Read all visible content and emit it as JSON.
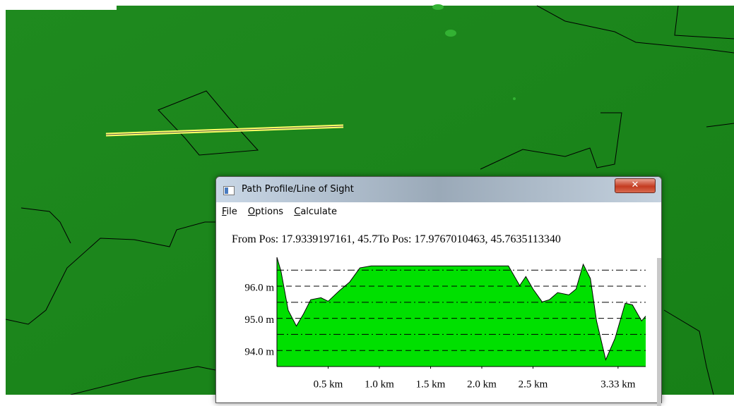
{
  "window": {
    "title": "Path Profile/Line of Sight",
    "menu": [
      "File",
      "Options",
      "Calculate"
    ],
    "position_text": "From Pos: 17.9339197161, 45.7To Pos: 17.9767010463, 45.7635113340"
  },
  "chart_data": {
    "type": "area",
    "x": [
      0,
      0.04,
      0.11,
      0.19,
      0.26,
      0.33,
      0.43,
      0.5,
      0.61,
      0.71,
      0.81,
      0.92,
      2.26,
      2.37,
      2.43,
      2.5,
      2.59,
      2.66,
      2.74,
      2.85,
      2.92,
      2.99,
      3.06,
      3.12,
      3.21,
      3.3,
      3.4,
      3.47,
      3.56,
      3.6
    ],
    "values": [
      96.9,
      96.46,
      95.25,
      94.76,
      95.14,
      95.58,
      95.64,
      95.53,
      95.86,
      96.13,
      96.57,
      96.63,
      96.63,
      96.02,
      96.3,
      95.91,
      95.51,
      95.58,
      95.8,
      95.73,
      95.91,
      96.68,
      96.24,
      94.92,
      93.71,
      94.37,
      95.47,
      95.42,
      94.92,
      95.07
    ],
    "color": "#00e000",
    "xlim": [
      0,
      3.6
    ],
    "xticks": [
      {
        "value": 0.5,
        "label": "0.5 km"
      },
      {
        "value": 1.0,
        "label": "1.0 km"
      },
      {
        "value": 1.5,
        "label": "1.5 km"
      },
      {
        "value": 2.0,
        "label": "2.0 km"
      },
      {
        "value": 2.5,
        "label": "2.5 km"
      },
      {
        "value": 3.33,
        "label": "3.33 km"
      }
    ],
    "ylim": [
      93.5,
      96.9
    ],
    "yticks": [
      {
        "value": 94,
        "label": "94.0 m"
      },
      {
        "value": 95,
        "label": "95.0 m"
      },
      {
        "value": 96,
        "label": "96.0 m"
      }
    ],
    "minor_yticks": [
      94.5,
      95.5,
      96.5
    ],
    "grid": true
  }
}
